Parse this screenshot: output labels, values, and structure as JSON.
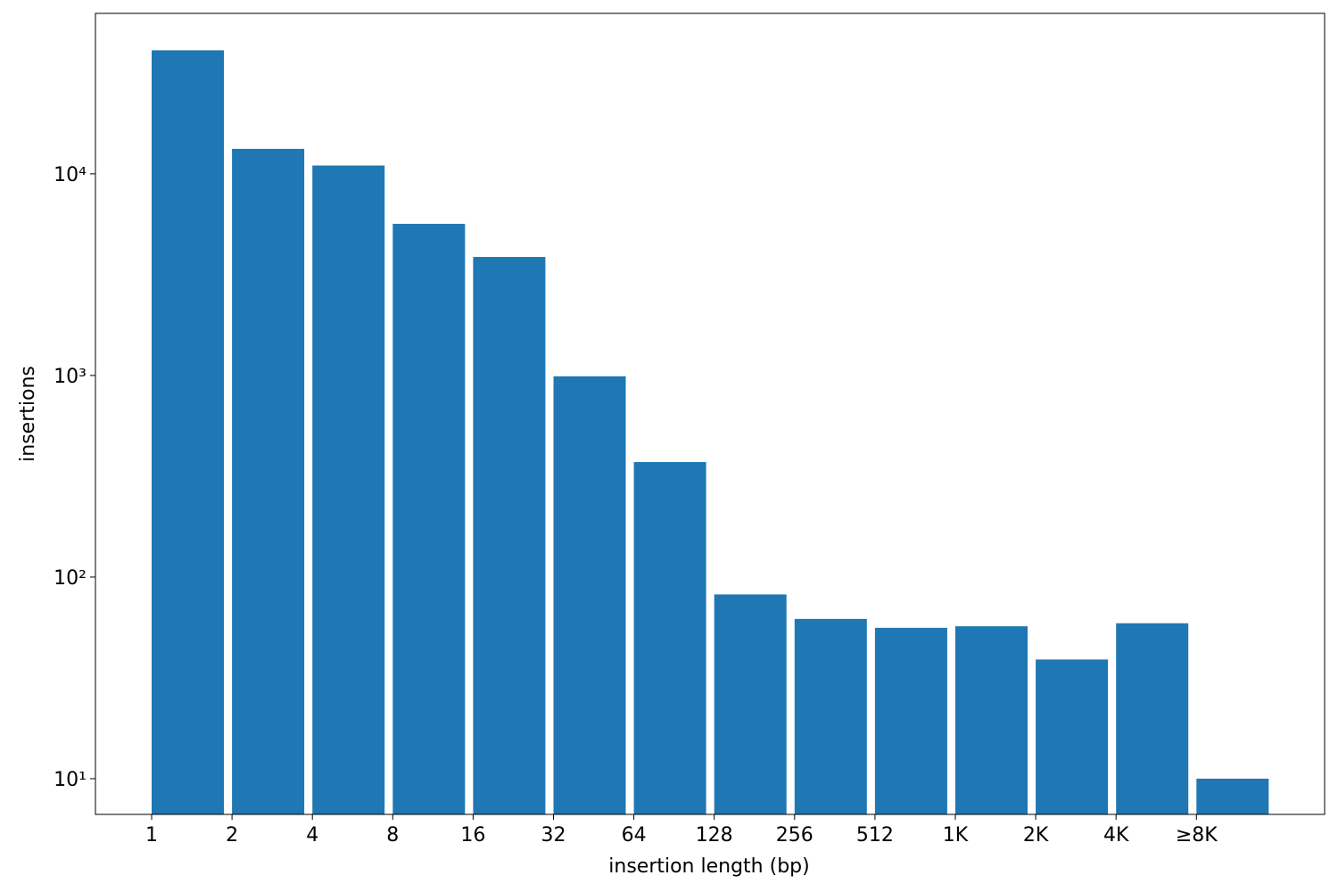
{
  "chart_data": {
    "type": "bar",
    "categories": [
      "1",
      "2",
      "4",
      "8",
      "16",
      "32",
      "64",
      "128",
      "256",
      "512",
      "1K",
      "2K",
      "4K",
      "≥8K"
    ],
    "values": [
      41000,
      13300,
      11000,
      5650,
      3870,
      990,
      372,
      82,
      62,
      56,
      57,
      39,
      59,
      10
    ],
    "color": "#1f77b4",
    "xlabel": "insertion length (bp)",
    "ylabel": "insertions",
    "ylog": true,
    "ylim": [
      6.65,
      62500
    ],
    "yticks": [
      {
        "value": 10,
        "label": "10¹"
      },
      {
        "value": 100,
        "label": "10²"
      },
      {
        "value": 1000,
        "label": "10³"
      },
      {
        "value": 10000,
        "label": "10⁴"
      }
    ]
  }
}
